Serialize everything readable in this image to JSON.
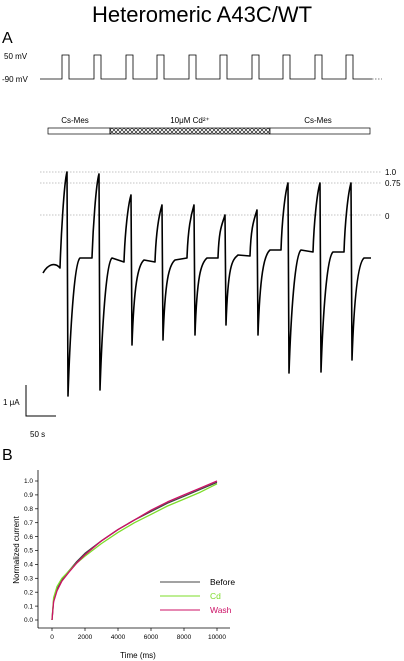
{
  "title": "Heteromeric A43C/WT",
  "panel_a": {
    "label": "A",
    "voltage_protocol": {
      "high_label": "50 mV",
      "low_label": "-90 mV",
      "pulse_count": 11
    },
    "solution_bar": {
      "left_label": "Cs-Mes",
      "middle_label": "10μM Cd²⁺",
      "right_label": "Cs-Mes"
    },
    "normalization_levels": [
      "1.0",
      "0.75",
      "0"
    ],
    "scale_bar": {
      "current_label": "1 μA",
      "time_label": "50 s"
    }
  },
  "panel_b": {
    "label": "B"
  },
  "chart_data": {
    "type": "line",
    "xlabel": "Time (ms)",
    "ylabel": "Normalized current",
    "xlim": [
      0,
      10000
    ],
    "ylim": [
      0,
      1.0
    ],
    "xticks": [
      "0",
      "2000",
      "4000",
      "6000",
      "8000",
      "10000"
    ],
    "yticks": [
      "0.0",
      "0.1",
      "0.2",
      "0.3",
      "0.4",
      "0.5",
      "0.6",
      "0.7",
      "0.8",
      "0.9",
      "1.0"
    ],
    "legend_position": "bottom-right",
    "x": [
      0,
      100,
      300,
      600,
      1000,
      1500,
      2000,
      3000,
      4000,
      5000,
      6000,
      7000,
      8000,
      9000,
      10000
    ],
    "series": [
      {
        "name": "Before",
        "color": "#444444",
        "values": [
          0.0,
          0.14,
          0.22,
          0.29,
          0.35,
          0.42,
          0.48,
          0.57,
          0.65,
          0.72,
          0.78,
          0.84,
          0.89,
          0.94,
          0.99
        ]
      },
      {
        "name": "Cd",
        "color": "#7ddc2a",
        "values": [
          0.0,
          0.16,
          0.24,
          0.3,
          0.35,
          0.41,
          0.46,
          0.55,
          0.63,
          0.7,
          0.76,
          0.82,
          0.87,
          0.92,
          0.98
        ]
      },
      {
        "name": "Wash",
        "color": "#cc1166",
        "values": [
          0.0,
          0.13,
          0.21,
          0.28,
          0.34,
          0.41,
          0.47,
          0.57,
          0.65,
          0.72,
          0.79,
          0.85,
          0.9,
          0.95,
          1.0
        ]
      }
    ]
  }
}
